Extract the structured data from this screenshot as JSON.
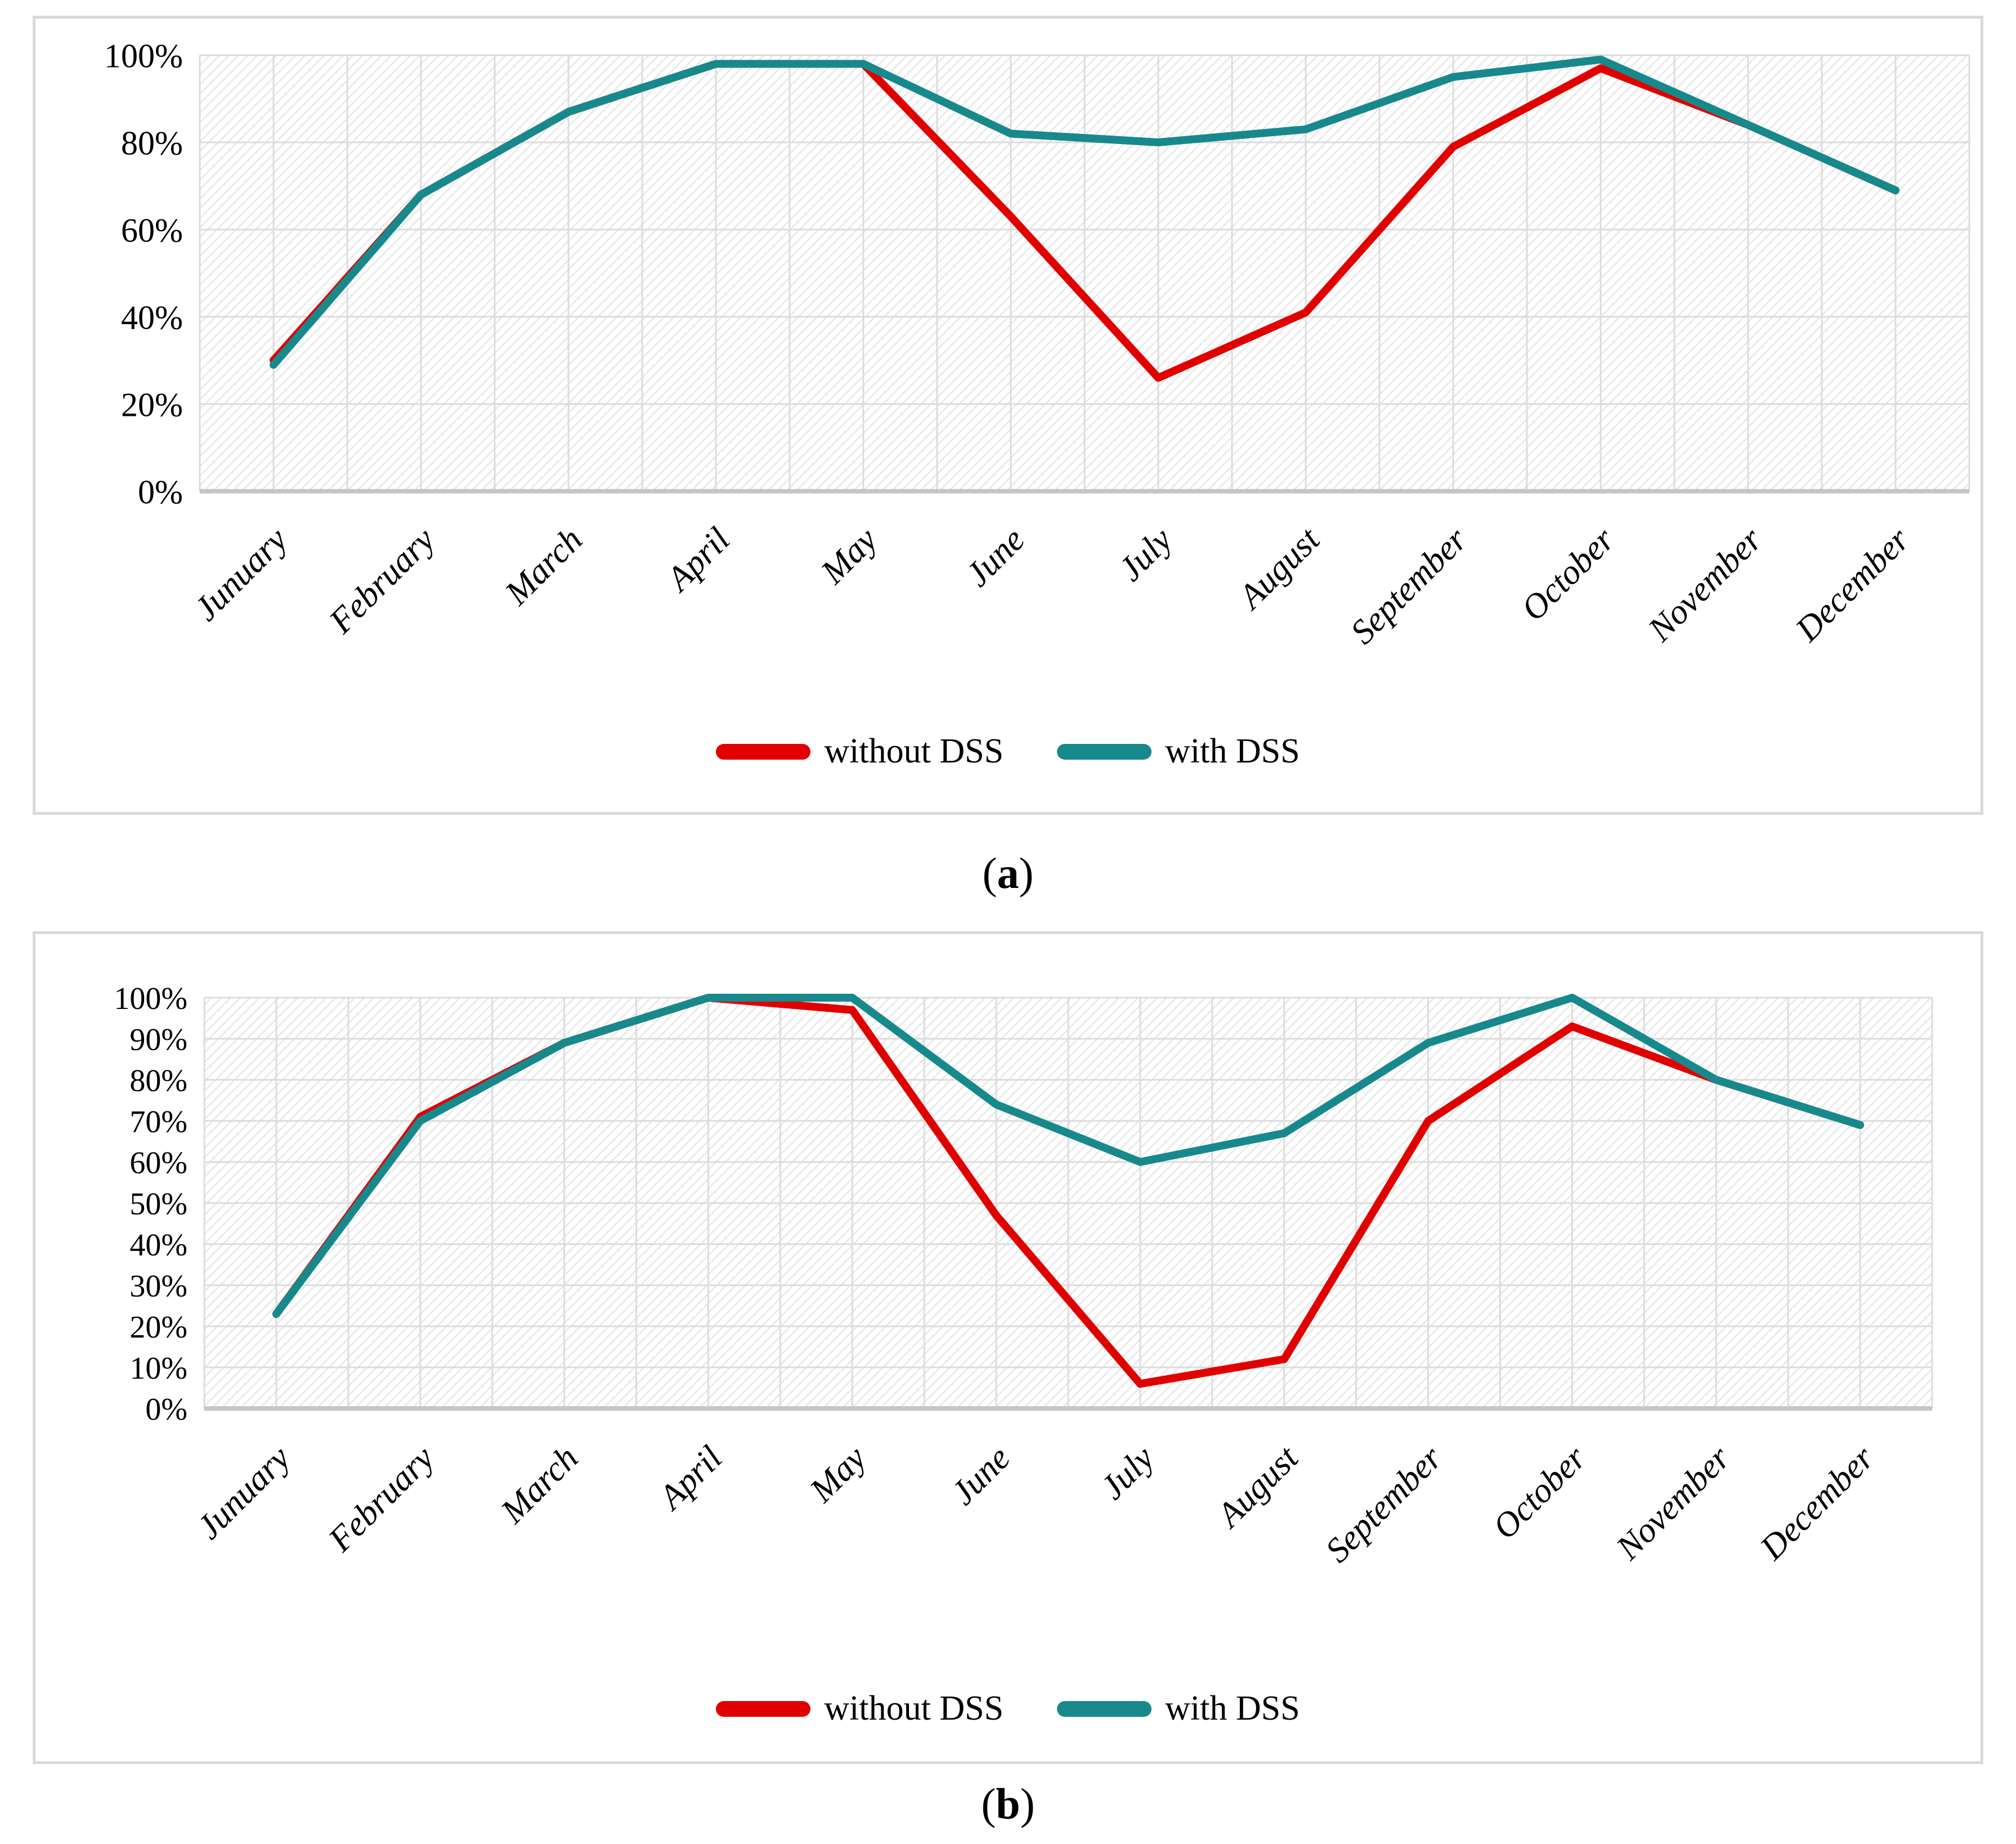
{
  "figure": {
    "captions": {
      "a": {
        "open": "(",
        "letter": "a",
        "close": ")"
      },
      "b": {
        "open": "(",
        "letter": "b",
        "close": ")"
      }
    }
  },
  "colors": {
    "without_dss": "#e00000",
    "with_dss": "#17898c",
    "gridline": "#dcdcdc",
    "axis": "#c6c6c6",
    "panel_border": "#d9d9d9",
    "hatch": "#e7e7e7"
  },
  "legend": {
    "without_label": "without DSS",
    "with_label": "with DSS"
  },
  "chart_data": [
    {
      "type": "line",
      "panel": "a",
      "title": "",
      "xlabel": "",
      "ylabel": "",
      "categories": [
        "Junuary",
        "February",
        "March",
        "April",
        "May",
        "June",
        "July",
        "August",
        "September",
        "October",
        "November",
        "December"
      ],
      "series": [
        {
          "name": "without DSS",
          "color": "#e00000",
          "values": [
            30,
            68,
            87,
            98,
            98,
            63,
            26,
            41,
            79,
            97,
            84,
            69
          ]
        },
        {
          "name": "with DSS",
          "color": "#17898c",
          "values": [
            29,
            68,
            87,
            98,
            98,
            82,
            80,
            83,
            95,
            99,
            84,
            69
          ]
        }
      ],
      "ylim": [
        0,
        100
      ],
      "ytick_step": 20,
      "ytick_suffix": "%",
      "grid": true,
      "legend_position": "bottom"
    },
    {
      "type": "line",
      "panel": "b",
      "title": "",
      "xlabel": "",
      "ylabel": "",
      "categories": [
        "Junuary",
        "February",
        "March",
        "April",
        "May",
        "June",
        "July",
        "August",
        "September",
        "October",
        "November",
        "December"
      ],
      "series": [
        {
          "name": "without DSS",
          "color": "#e00000",
          "values": [
            23,
            71,
            89,
            100,
            97,
            47,
            6,
            12,
            70,
            93,
            80,
            69
          ]
        },
        {
          "name": "with DSS",
          "color": "#17898c",
          "values": [
            23,
            70,
            89,
            100,
            100,
            74,
            60,
            67,
            89,
            100,
            80,
            69
          ]
        }
      ],
      "ylim": [
        0,
        100
      ],
      "ytick_step": 10,
      "ytick_suffix": "%",
      "grid": true,
      "legend_position": "bottom"
    }
  ]
}
